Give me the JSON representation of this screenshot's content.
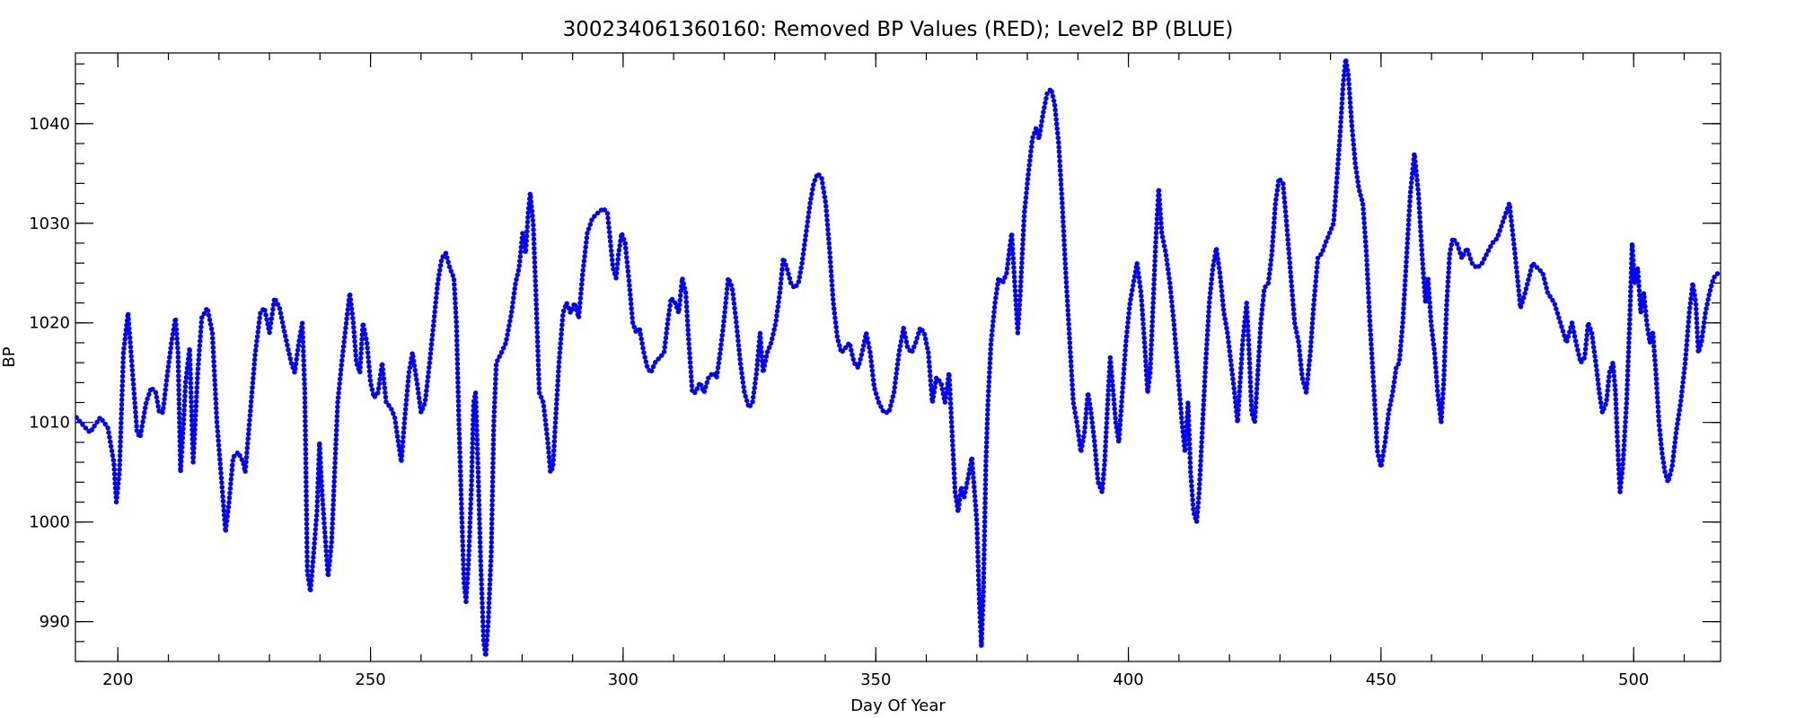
{
  "chart_data": {
    "type": "line",
    "title": "300234061360160: Removed BP Values (RED); Level2 BP (BLUE)",
    "x_label": "Day Of Year",
    "y_label": "BP",
    "color": "#0000ff",
    "xlim": [
      191.6,
      517.2
    ],
    "ylim": [
      986,
      1047.1
    ],
    "xticks": [
      200,
      250,
      300,
      350,
      400,
      450,
      500
    ],
    "yticks": [
      990,
      1000,
      1010,
      1020,
      1030,
      1040
    ],
    "xminorticks": [
      200,
      210,
      220,
      230,
      240,
      250,
      260,
      270,
      280,
      290,
      300,
      310,
      320,
      330,
      340,
      350,
      360,
      370,
      380,
      390,
      400,
      410,
      420,
      430,
      440,
      450,
      460,
      470,
      480,
      490,
      500,
      510
    ],
    "yminorticks": [
      986,
      988,
      990,
      992,
      994,
      996,
      998,
      1000,
      1002,
      1004,
      1006,
      1008,
      1010,
      1012,
      1014,
      1016,
      1018,
      1020,
      1022,
      1024,
      1026,
      1028,
      1030,
      1032,
      1034,
      1036,
      1038,
      1040,
      1042,
      1044,
      1046
    ],
    "x": [
      191.8,
      193.5,
      194.5,
      196.5,
      198,
      199.2,
      199.7,
      200.3,
      201.1,
      202,
      202.9,
      203.8,
      204.4,
      205.6,
      206.6,
      207.5,
      208.2,
      208.9,
      209.7,
      210.6,
      211.4,
      211.9,
      212.4,
      213,
      213.4,
      214.2,
      214.9,
      215.8,
      216.6,
      217.7,
      218.7,
      219.6,
      220.7,
      221.3,
      222,
      222.8,
      223.8,
      224.8,
      225.2,
      226.2,
      227.2,
      228.2,
      229,
      230,
      231,
      232,
      233,
      234.3,
      235,
      235.8,
      236.5,
      237,
      237.5,
      238.1,
      238.6,
      239.4,
      239.9,
      240.4,
      241.1,
      241.6,
      242.3,
      242.9,
      243.5,
      244.3,
      245.2,
      245.9,
      246.6,
      247.2,
      247.9,
      248.5,
      249.3,
      250,
      250.7,
      251.5,
      252.3,
      253.1,
      254,
      254.8,
      255.5,
      256.1,
      256.7,
      257.6,
      258.3,
      259.2,
      260,
      260.8,
      261.7,
      262.5,
      263.3,
      264.1,
      264.9,
      265.7,
      266.5,
      267,
      267.5,
      268.1,
      268.5,
      268.9,
      269.4,
      270,
      270.4,
      270.8,
      271.3,
      271.8,
      272.4,
      272.8,
      273.3,
      273.9,
      274.4,
      274.9,
      275.9,
      276.8,
      277.9,
      278.7,
      279.4,
      280.1,
      280.7,
      281.2,
      281.6,
      282.2,
      282.8,
      283.4,
      284.2,
      285.1,
      285.6,
      286.1,
      286.6,
      287.3,
      288.1,
      288.8,
      289.6,
      290.4,
      291.2,
      292,
      292.9,
      293.9,
      294.9,
      296.1,
      296.9,
      297.5,
      298,
      298.6,
      299.1,
      299.7,
      300.4,
      301.2,
      301.9,
      302.6,
      303.2,
      304.1,
      304.8,
      305.5,
      306.3,
      307.2,
      308.1,
      308.8,
      309.5,
      310.3,
      311,
      311.7,
      312.4,
      313,
      313.7,
      314.3,
      315.2,
      316,
      316.9,
      317.8,
      318.5,
      319.2,
      319.9,
      320.8,
      321.6,
      322.4,
      323.2,
      324,
      324.9,
      325.6,
      326.4,
      327.1,
      327.7,
      328.5,
      329.3,
      330.2,
      331,
      331.7,
      332.4,
      333.2,
      333.9,
      334.7,
      335.4,
      336.2,
      337,
      337.7,
      338.5,
      339.3,
      340.1,
      340.9,
      341.6,
      342.4,
      343.2,
      344,
      344.8,
      345.7,
      346.5,
      347.3,
      348.1,
      348.9,
      349.7,
      350.6,
      351.6,
      352.6,
      353.6,
      354.6,
      355.5,
      356.3,
      357.1,
      357.9,
      358.8,
      359.6,
      360.4,
      361.2,
      362,
      362.9,
      363.7,
      364.5,
      365.1,
      365.7,
      366.3,
      366.9,
      367.5,
      368.3,
      369,
      369.4,
      370,
      370.5,
      370.9,
      371.3,
      371.8,
      372.2,
      372.8,
      373.6,
      374.3,
      375.1,
      375.9,
      376.5,
      376.9,
      377.5,
      378.1,
      378.6,
      379.4,
      380.2,
      381,
      381.7,
      382.3,
      383.1,
      383.9,
      384.7,
      385.4,
      386.2,
      386.9,
      387.6,
      388.4,
      389.1,
      389.8,
      390.6,
      391.3,
      392,
      392.6,
      393.3,
      394,
      394.8,
      395.3,
      395.9,
      396.4,
      397,
      397.5,
      398.1,
      398.8,
      399.5,
      400.3,
      401,
      401.7,
      402.5,
      403.2,
      403.8,
      404.3,
      404.9,
      405.4,
      406,
      406.6,
      407.4,
      408.2,
      409,
      409.8,
      410.6,
      411.2,
      411.8,
      412.3,
      412.9,
      413.5,
      414,
      414.6,
      415.3,
      416,
      416.7,
      417.4,
      418.1,
      418.9,
      419.6,
      420.3,
      421,
      421.6,
      422.1,
      422.6,
      423.4,
      423.9,
      424.4,
      425,
      425.5,
      426.2,
      426.9,
      427.7,
      428.4,
      429.1,
      429.8,
      430.6,
      431.3,
      432.1,
      432.9,
      433.7,
      434.4,
      435.2,
      436,
      436.7,
      437.5,
      438.3,
      439,
      439.8,
      440.6,
      441.2,
      441.9,
      442.5,
      443,
      443.5,
      444.2,
      444.9,
      445.6,
      446.4,
      447.1,
      447.8,
      448.5,
      449.3,
      450,
      450.8,
      451.5,
      452.3,
      453,
      453.6,
      454.3,
      455.1,
      455.8,
      456.6,
      457.4,
      458.1,
      458.8,
      459.3,
      459.9,
      460.6,
      461.2,
      461.9,
      462.4,
      463,
      463.6,
      464.2,
      465,
      466,
      467,
      468,
      469,
      470,
      471,
      472,
      473,
      474,
      475.4,
      476.5,
      477.6,
      478.5,
      480,
      481,
      482,
      483,
      484.3,
      485.5,
      486.7,
      487.8,
      488.6,
      489.5,
      490.3,
      491,
      491.7,
      492.5,
      493.2,
      493.8,
      494.6,
      495.2,
      495.9,
      496.4,
      496.8,
      497.3,
      497.9,
      498.6,
      499.2,
      499.7,
      500.2,
      500.8,
      501.4,
      502,
      502.6,
      503.2,
      503.8,
      504.4,
      505,
      505.6,
      506.2,
      506.8,
      507.6,
      508.4,
      509.3,
      510.2,
      511,
      511.7,
      512.3,
      512.8,
      513.4,
      514.2,
      515,
      515.8,
      516.7
    ],
    "values": [
      1010.5,
      1009.5,
      1009,
      1010.5,
      1009.5,
      1006,
      1002,
      1005,
      1017,
      1021,
      1015,
      1009,
      1008.5,
      1012,
      1013.5,
      1013,
      1011,
      1011,
      1014.5,
      1018,
      1020.5,
      1017,
      1005,
      1010,
      1014,
      1017.5,
      1006,
      1015,
      1020.5,
      1021.5,
      1019,
      1010,
      1003,
      999,
      1002,
      1006.5,
      1007,
      1006,
      1005,
      1011,
      1017,
      1021,
      1021.5,
      1019,
      1022.5,
      1021.5,
      1019,
      1016,
      1015,
      1018,
      1020,
      1013,
      995,
      993,
      996,
      1001,
      1008,
      1003,
      998,
      994.5,
      998,
      1005,
      1012,
      1016,
      1020,
      1023,
      1020,
      1016,
      1015,
      1020,
      1018,
      1014,
      1012.5,
      1013,
      1016,
      1012,
      1011.5,
      1010.5,
      1008,
      1006,
      1010,
      1015,
      1017,
      1014,
      1011,
      1012,
      1016,
      1020,
      1024,
      1026.5,
      1027,
      1025.5,
      1024.5,
      1020,
      1010,
      1000,
      994,
      992,
      996,
      1004,
      1012,
      1013,
      1005,
      996,
      988,
      986.5,
      990,
      997,
      1010,
      1016,
      1017,
      1018,
      1021,
      1024,
      1025.5,
      1029,
      1027,
      1031,
      1033,
      1030,
      1022,
      1013,
      1012,
      1008,
      1005,
      1005.5,
      1010,
      1016,
      1021,
      1022,
      1021,
      1022,
      1020.5,
      1025,
      1029,
      1030.5,
      1031,
      1031.5,
      1031,
      1028,
      1025.5,
      1024.5,
      1027,
      1029,
      1028,
      1024,
      1020,
      1019,
      1019.5,
      1017,
      1015.5,
      1015,
      1016,
      1016.5,
      1017,
      1020,
      1022.5,
      1022,
      1021,
      1024.5,
      1023,
      1018,
      1013,
      1013,
      1014,
      1013,
      1014.5,
      1015,
      1014.5,
      1017,
      1020,
      1024.5,
      1023.5,
      1020,
      1016,
      1013,
      1011.5,
      1012,
      1015,
      1019,
      1015,
      1017,
      1018,
      1020,
      1023,
      1026.5,
      1025.5,
      1024,
      1023.5,
      1024,
      1026,
      1029,
      1032,
      1034,
      1035,
      1034.5,
      1032,
      1027,
      1022,
      1018.5,
      1017,
      1017.5,
      1018,
      1016,
      1015.5,
      1017,
      1019,
      1017,
      1013.5,
      1012,
      1011,
      1011,
      1013,
      1017,
      1019.5,
      1017.5,
      1017,
      1018,
      1019.5,
      1019,
      1017,
      1012,
      1014.5,
      1014,
      1012,
      1015,
      1009,
      1003,
      1001,
      1003.5,
      1002.5,
      1004.5,
      1006.5,
      1004,
      1000,
      992,
      987.5,
      993,
      1006,
      1012,
      1018,
      1022,
      1024.5,
      1024,
      1025,
      1027.5,
      1029,
      1024,
      1019,
      1023,
      1031,
      1035,
      1038.5,
      1039.5,
      1038.5,
      1041,
      1043,
      1043.5,
      1042,
      1038,
      1032,
      1025,
      1018,
      1012,
      1010,
      1007,
      1009,
      1013,
      1011,
      1008,
      1004,
      1003,
      1006,
      1012,
      1016.5,
      1013,
      1010,
      1008,
      1013,
      1018,
      1022,
      1024,
      1026,
      1023,
      1018,
      1013,
      1015,
      1022,
      1028,
      1033.5,
      1029,
      1027,
      1024,
      1020,
      1015,
      1010,
      1007,
      1012,
      1005,
      1001,
      1000,
      1003,
      1009,
      1016,
      1022,
      1025.5,
      1027.5,
      1025,
      1021,
      1019,
      1016,
      1013,
      1010,
      1014,
      1018,
      1022,
      1017,
      1011,
      1010,
      1014,
      1020,
      1023.5,
      1024,
      1027,
      1032,
      1034.5,
      1034,
      1030,
      1025,
      1020,
      1018,
      1014.5,
      1013,
      1017,
      1022,
      1026.5,
      1027,
      1028,
      1029,
      1030,
      1034,
      1039,
      1044,
      1046.5,
      1045,
      1040,
      1036,
      1033.5,
      1032,
      1027,
      1020,
      1014,
      1007,
      1005.5,
      1008,
      1011,
      1013,
      1015.5,
      1016,
      1020,
      1027,
      1033,
      1037,
      1033,
      1027,
      1022,
      1024.5,
      1020,
      1017,
      1013,
      1010,
      1014,
      1022,
      1027,
      1028.5,
      1028,
      1026.5,
      1027.5,
      1026,
      1025.5,
      1026,
      1027,
      1028,
      1028.5,
      1030,
      1032,
      1027,
      1021.5,
      1023,
      1026,
      1025.5,
      1025,
      1023,
      1022,
      1020,
      1018,
      1020,
      1018,
      1016,
      1016.5,
      1020,
      1019,
      1016,
      1013,
      1011,
      1012,
      1015,
      1016,
      1013,
      1008,
      1003,
      1006,
      1012,
      1020,
      1028,
      1024,
      1025.5,
      1021,
      1023,
      1020,
      1018,
      1019,
      1015,
      1010,
      1007,
      1005,
      1004,
      1005.5,
      1009,
      1012,
      1016,
      1021,
      1024,
      1022,
      1017,
      1018,
      1021,
      1023,
      1024.5,
      1025
    ]
  }
}
